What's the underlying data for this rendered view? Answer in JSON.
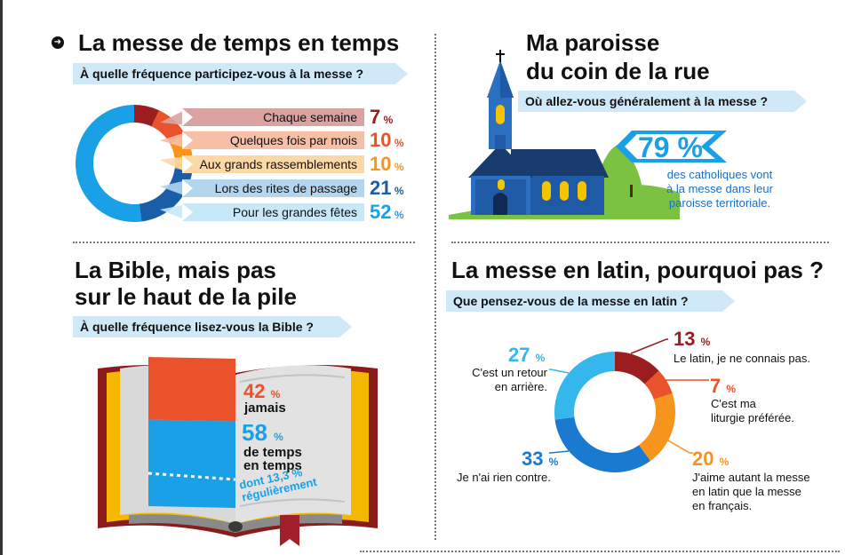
{
  "colors": {
    "dark_red": "#9b1d20",
    "orange_red": "#e9522a",
    "orange": "#f7941d",
    "dark_blue": "#1a5ea8",
    "light_blue": "#1aa0e6",
    "sky_blue": "#35b6ec",
    "question_bg": "#cfe9f8",
    "church_blue": "#1f5aa6",
    "green": "#7cc242"
  },
  "section1": {
    "title": "La messe de temps en temps",
    "question": "À quelle fréquence participez-vous à la messe ?"
  },
  "section2": {
    "title_line1": "Ma paroisse",
    "title_line2": "du coin de la rue",
    "question": "Où allez-vous généralement à la messe ?",
    "big_pct": "79 %",
    "text_lines": [
      "des catholiques vont",
      "à la messe dans leur",
      "paroisse territoriale."
    ]
  },
  "section3": {
    "title_line1": "La Bible, mais pas",
    "title_line2": "sur le haut de la pile",
    "question": "À quelle fréquence lisez-vous la Bible ?",
    "p1_value": "42",
    "p1_unit": "%",
    "p1_label": "jamais",
    "p2_value": "58",
    "p2_unit": "%",
    "p2_label_lines": [
      "de temps",
      "en temps"
    ],
    "p3_lines": [
      "dont 13,3 %",
      "régulièrement"
    ]
  },
  "section4": {
    "title": "La messe en latin, pourquoi pas ?",
    "question": "Que pensez-vous de la messe en latin ?",
    "items": [
      {
        "value": "13",
        "unit": "%",
        "lines": [
          "Le latin, je ne connais pas."
        ]
      },
      {
        "value": "7",
        "unit": "%",
        "lines": [
          "C'est ma",
          "liturgie préférée."
        ]
      },
      {
        "value": "20",
        "unit": "%",
        "lines": [
          "J'aime autant la messe",
          "en latin que la messe",
          "en français."
        ]
      },
      {
        "value": "33",
        "unit": "%",
        "lines": [
          "Je n'ai rien contre."
        ]
      },
      {
        "value": "27",
        "unit": "%",
        "lines": [
          "C'est un retour",
          "en arrière."
        ]
      }
    ]
  },
  "chart_data": [
    {
      "type": "pie",
      "title": "La messe de temps en temps",
      "categories": [
        "Chaque semaine",
        "Quelques fois par mois",
        "Aux grands rassemblements",
        "Lors des rites de passage",
        "Pour les grandes fêtes"
      ],
      "values": [
        7,
        10,
        10,
        21,
        52
      ],
      "labels": [
        "7 %",
        "10 %",
        "10 %",
        "21 %",
        "52 %"
      ],
      "colors": [
        "#9b1d20",
        "#e9522a",
        "#f7941d",
        "#1a5ea8",
        "#1aa0e6"
      ],
      "bar_colors": [
        "#dba2a2",
        "#f7c0a6",
        "#fbd8a6",
        "#b3d6ee",
        "#c7e8f8"
      ]
    },
    {
      "type": "pie",
      "title": "La messe en latin, pourquoi pas ?",
      "categories": [
        "Le latin, je ne connais pas.",
        "C'est ma liturgie préférée.",
        "J'aime autant la messe en latin que la messe en français.",
        "Je n'ai rien contre.",
        "C'est un retour en arrière."
      ],
      "values": [
        13,
        7,
        20,
        33,
        27
      ],
      "colors": [
        "#9b1d20",
        "#e9522a",
        "#f7941d",
        "#1a7ad0",
        "#35b6ec"
      ]
    },
    {
      "type": "bar",
      "title": "La Bible, mais pas sur le haut de la pile",
      "categories": [
        "jamais",
        "de temps en temps"
      ],
      "values": [
        42,
        58
      ],
      "colors": [
        "#e9522a",
        "#1aa0e6"
      ]
    }
  ]
}
